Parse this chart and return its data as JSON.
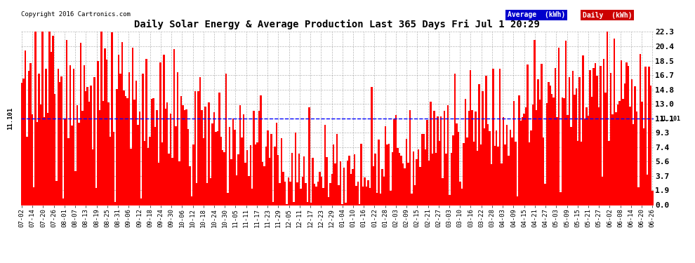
{
  "title": "Daily Solar Energy & Average Production Last 365 Days Fri Jul 1 20:29",
  "copyright": "Copyright 2016 Cartronics.com",
  "ylabel_right_ticks": [
    0.0,
    1.9,
    3.7,
    5.6,
    7.4,
    9.3,
    11.1,
    13.0,
    14.8,
    16.7,
    18.5,
    20.4,
    22.3
  ],
  "average_value": 11.101,
  "average_label": "11.101",
  "bar_color": "#ff0000",
  "average_line_color": "#0000ff",
  "background_color": "#ffffff",
  "grid_color": "#888888",
  "legend_avg_bg": "#0000cc",
  "legend_daily_bg": "#cc0000",
  "legend_avg_text": "Average  (kWh)",
  "legend_daily_text": "Daily  (kWh)",
  "x_tick_labels": [
    "07-02",
    "07-14",
    "07-20",
    "07-26",
    "08-01",
    "08-07",
    "08-13",
    "08-19",
    "08-25",
    "08-31",
    "09-06",
    "09-12",
    "09-18",
    "09-24",
    "09-30",
    "10-06",
    "10-12",
    "10-18",
    "10-24",
    "10-30",
    "11-05",
    "11-11",
    "11-17",
    "11-23",
    "11-29",
    "12-05",
    "12-11",
    "12-17",
    "12-23",
    "12-29",
    "01-04",
    "01-10",
    "01-16",
    "01-22",
    "01-28",
    "02-03",
    "02-09",
    "02-15",
    "02-21",
    "02-27",
    "03-03",
    "03-10",
    "03-16",
    "03-22",
    "03-28",
    "04-03",
    "04-09",
    "04-15",
    "04-21",
    "04-27",
    "05-03",
    "05-09",
    "05-15",
    "05-21",
    "05-27",
    "06-02",
    "06-08",
    "06-14",
    "06-20",
    "06-26"
  ],
  "num_bars": 365,
  "ylim_max": 22.3,
  "ylim_min": 0.0
}
